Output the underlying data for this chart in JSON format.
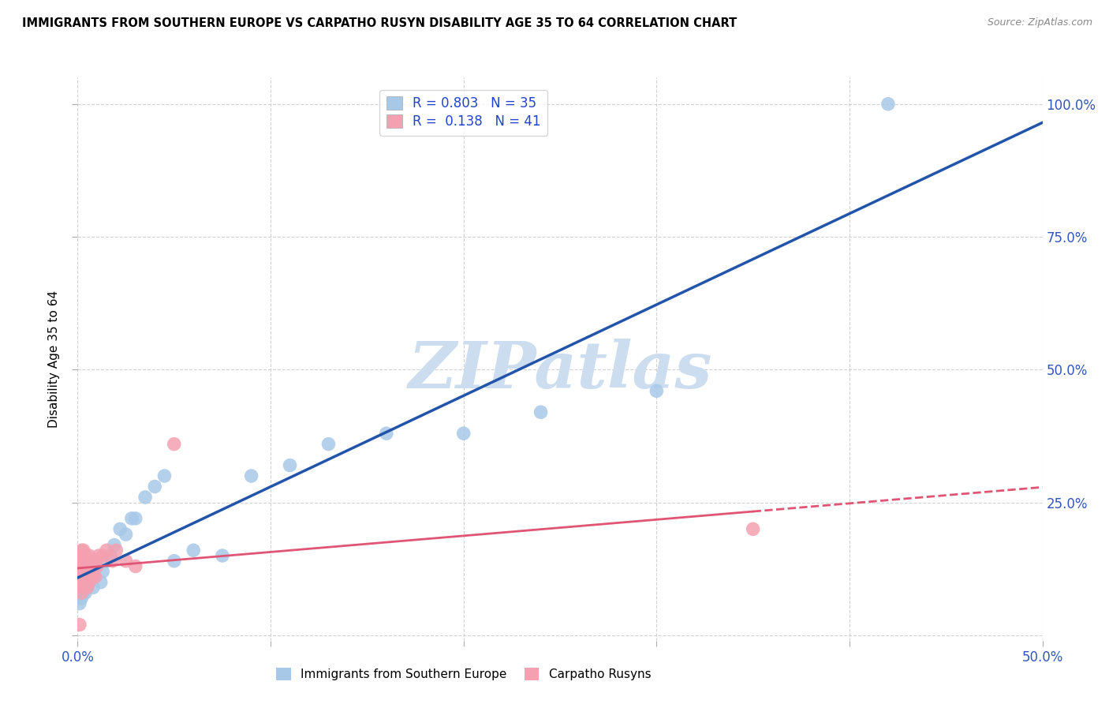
{
  "title": "IMMIGRANTS FROM SOUTHERN EUROPE VS CARPATHO RUSYN DISABILITY AGE 35 TO 64 CORRELATION CHART",
  "source": "Source: ZipAtlas.com",
  "ylabel": "Disability Age 35 to 64",
  "xlim": [
    0.0,
    0.5
  ],
  "ylim": [
    -0.01,
    1.05
  ],
  "blue_R": 0.803,
  "blue_N": 35,
  "pink_R": 0.138,
  "pink_N": 41,
  "blue_color": "#a8c8e8",
  "blue_line_color": "#2255aa",
  "pink_color": "#f4a0b0",
  "pink_line_color": "#e05575",
  "legend_label_blue": "Immigrants from Southern Europe",
  "legend_label_pink": "Carpatho Rusyns",
  "watermark": "ZIPatlas",
  "watermark_color": "#ccddf0",
  "grid_color": "#cccccc",
  "blue_x": [
    0.001,
    0.002,
    0.003,
    0.003,
    0.004,
    0.005,
    0.005,
    0.006,
    0.007,
    0.008,
    0.009,
    0.01,
    0.012,
    0.013,
    0.015,
    0.017,
    0.019,
    0.022,
    0.025,
    0.028,
    0.03,
    0.035,
    0.04,
    0.045,
    0.05,
    0.06,
    0.075,
    0.09,
    0.11,
    0.13,
    0.16,
    0.2,
    0.24,
    0.3,
    0.42
  ],
  "blue_y": [
    0.06,
    0.07,
    0.08,
    0.1,
    0.08,
    0.09,
    0.11,
    0.1,
    0.12,
    0.09,
    0.11,
    0.13,
    0.1,
    0.12,
    0.14,
    0.15,
    0.17,
    0.2,
    0.19,
    0.22,
    0.22,
    0.26,
    0.28,
    0.3,
    0.14,
    0.16,
    0.15,
    0.3,
    0.32,
    0.36,
    0.38,
    0.38,
    0.42,
    0.46,
    1.0
  ],
  "pink_x": [
    0.001,
    0.001,
    0.001,
    0.001,
    0.001,
    0.001,
    0.002,
    0.002,
    0.002,
    0.002,
    0.002,
    0.003,
    0.003,
    0.003,
    0.003,
    0.004,
    0.004,
    0.004,
    0.004,
    0.005,
    0.005,
    0.005,
    0.006,
    0.006,
    0.006,
    0.007,
    0.007,
    0.008,
    0.008,
    0.009,
    0.01,
    0.011,
    0.013,
    0.015,
    0.018,
    0.02,
    0.025,
    0.03,
    0.05,
    0.35,
    0.001
  ],
  "pink_y": [
    0.1,
    0.11,
    0.12,
    0.13,
    0.14,
    0.15,
    0.08,
    0.1,
    0.12,
    0.14,
    0.16,
    0.09,
    0.11,
    0.13,
    0.16,
    0.1,
    0.11,
    0.13,
    0.15,
    0.09,
    0.11,
    0.13,
    0.1,
    0.12,
    0.15,
    0.11,
    0.13,
    0.12,
    0.14,
    0.11,
    0.13,
    0.15,
    0.15,
    0.16,
    0.14,
    0.16,
    0.14,
    0.13,
    0.36,
    0.2,
    0.02
  ]
}
